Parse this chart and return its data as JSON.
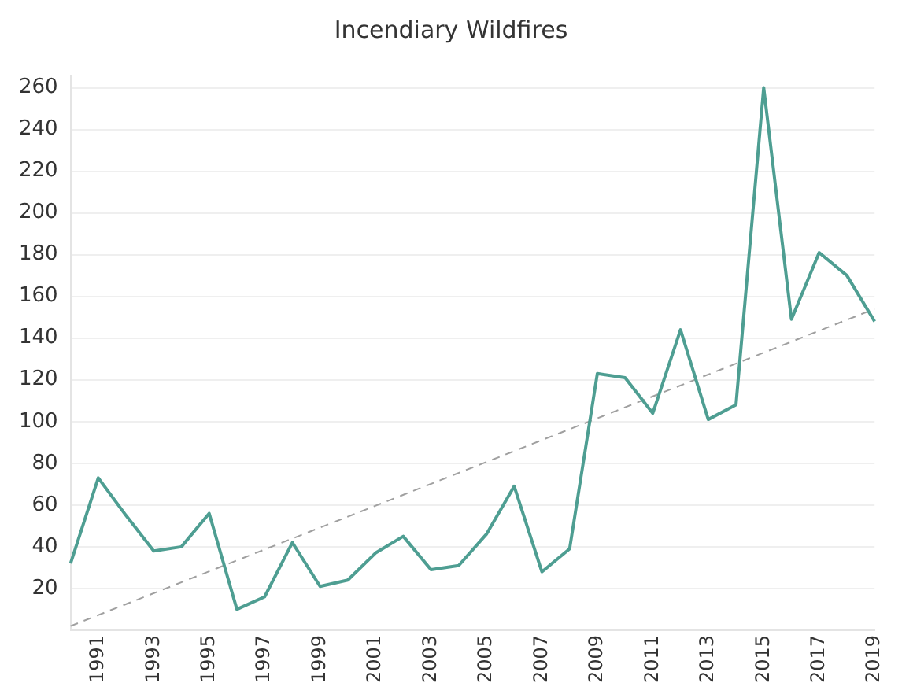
{
  "chart_data": {
    "type": "line",
    "title": "Incendiary Wildfires",
    "categories": [
      null,
      "1991",
      null,
      "1993",
      null,
      "1995",
      null,
      "1997",
      null,
      "1999",
      null,
      "2001",
      null,
      "2003",
      null,
      "2005",
      null,
      "2007",
      null,
      "2009",
      null,
      "2011",
      null,
      "2013",
      null,
      "2015",
      null,
      "2017",
      null,
      "2019"
    ],
    "series": [
      {
        "color": "#4e9e92",
        "values": [
          32,
          73,
          55,
          38,
          40,
          56,
          10,
          16,
          42,
          21,
          24,
          37,
          45,
          29,
          31,
          46,
          69,
          28,
          39,
          123,
          121,
          104,
          144,
          101,
          108,
          260,
          149,
          181,
          170,
          148
        ]
      },
      {
        "type": "line",
        "color": "#a0a0a0",
        "line_style": "dashed",
        "values": [
          2,
          null,
          null,
          null,
          null,
          null,
          null,
          null,
          null,
          null,
          null,
          null,
          null,
          null,
          null,
          null,
          null,
          null,
          null,
          null,
          null,
          null,
          null,
          null,
          null,
          null,
          null,
          null,
          null,
          154
        ]
      }
    ],
    "ylim": [
      0,
      266
    ],
    "yticks": [
      20,
      40,
      60,
      80,
      100,
      120,
      140,
      160,
      180,
      200,
      220,
      240,
      260
    ],
    "grid": "y",
    "legend": false,
    "marker": "none",
    "line_style": "solid"
  }
}
